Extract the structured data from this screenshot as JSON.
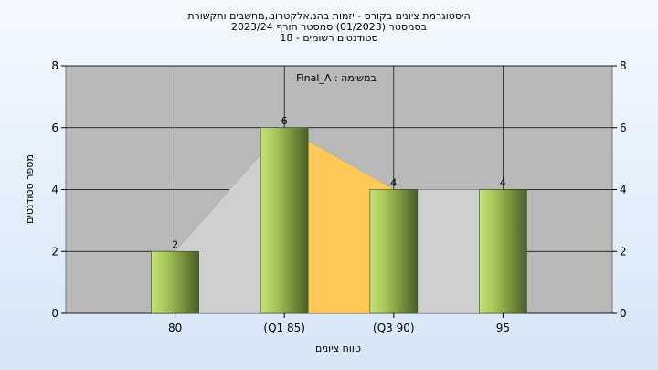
{
  "chart_data": {
    "type": "bar",
    "title_lines": [
      "היסטוגרמת ציונים בקורס - יזמות בהנ.אלקטרונ.,מחשבים ותקשורת",
      "בסמסטר  (01/2023)  סמסטר חורף 2023/24",
      "סטודנטים רשומים - 18"
    ],
    "subtitle": "Final_A : במשימה",
    "xlabel": "טווח ציונים",
    "ylabel": "מספר סטודנטים",
    "categories": [
      "80",
      "(Q1 85)",
      "(Q3 90)",
      "95"
    ],
    "values": [
      2,
      6,
      4,
      4
    ],
    "data_labels": [
      "2",
      "6",
      "4",
      "4"
    ],
    "yticks": [
      "0",
      "2",
      "4",
      "6",
      "8"
    ],
    "ylim": [
      0,
      8
    ],
    "grid": true,
    "colors": {
      "plot_bg": "#b9b9b9",
      "bar_light": "#c6e07a",
      "bar_dark": "#4a5e26",
      "iqr_fill": "#ffc857",
      "shape_fill": "#cfcfcf"
    }
  }
}
